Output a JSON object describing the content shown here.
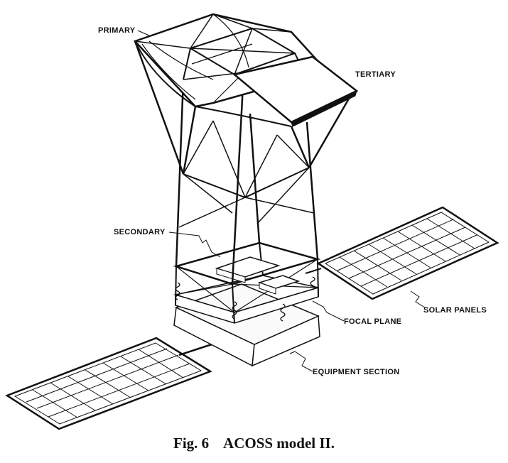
{
  "labels": {
    "primary": "PRIMARY",
    "tertiary": "TERTIARY",
    "secondary": "SECONDARY",
    "solar_panels": "SOLAR PANELS",
    "focal_plane": "FOCAL PLANE",
    "equipment_section": "EQUIPMENT SECTION"
  },
  "caption": {
    "fig_number": "Fig. 6",
    "text": "ACOSS model II."
  }
}
